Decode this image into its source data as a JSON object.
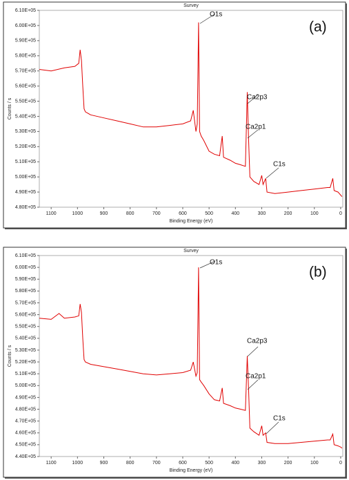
{
  "chart_data": [
    {
      "type": "line",
      "title": "Survey",
      "panel_label": "(a)",
      "xlabel": "Binding Energy (eV)",
      "ylabel": "Counts / s",
      "annotations": [
        "O1s",
        "Ca2p3",
        "Ca2p1",
        "C1s"
      ],
      "xlim": [
        1145,
        -8
      ],
      "xticks": [
        1100,
        1000,
        900,
        800,
        700,
        600,
        500,
        400,
        300,
        200,
        100,
        0
      ],
      "ylim": [
        480000,
        610000
      ],
      "yticks": [
        {
          "value": 480000,
          "label": "4.80E+05"
        },
        {
          "value": 490000,
          "label": "4.90E+05"
        },
        {
          "value": 500000,
          "label": "5.00E+05"
        },
        {
          "value": 510000,
          "label": "5.10E+05"
        },
        {
          "value": 520000,
          "label": "5.20E+05"
        },
        {
          "value": 530000,
          "label": "5.30E+05"
        },
        {
          "value": 540000,
          "label": "5.40E+05"
        },
        {
          "value": 550000,
          "label": "5.50E+05"
        },
        {
          "value": 560000,
          "label": "5.60E+05"
        },
        {
          "value": 570000,
          "label": "5.70E+05"
        },
        {
          "value": 580000,
          "label": "5.80E+05"
        },
        {
          "value": 590000,
          "label": "5.90E+05"
        },
        {
          "value": 600000,
          "label": "6.00E+05"
        },
        {
          "value": 610000,
          "label": "6.10E+05"
        }
      ],
      "color": "#e00000",
      "x": [
        1145,
        1100,
        1050,
        1010,
        995,
        990,
        985,
        980,
        975,
        970,
        950,
        900,
        850,
        800,
        750,
        700,
        650,
        600,
        570,
        560,
        550,
        545,
        540,
        536,
        530,
        520,
        500,
        480,
        460,
        450,
        445,
        420,
        400,
        380,
        362,
        355,
        350,
        345,
        330,
        310,
        300,
        295,
        285,
        280,
        250,
        200,
        150,
        100,
        50,
        40,
        30,
        25,
        10,
        0,
        -5
      ],
      "values": [
        571000,
        570000,
        572000,
        573000,
        575000,
        584000,
        577000,
        560000,
        545000,
        543000,
        541000,
        539000,
        537000,
        535000,
        533000,
        533000,
        534000,
        535000,
        537000,
        544000,
        530000,
        535000,
        602000,
        530000,
        527000,
        524000,
        517000,
        515000,
        514000,
        527000,
        513000,
        511000,
        509000,
        508000,
        507000,
        556000,
        525000,
        500000,
        497000,
        495000,
        501000,
        495000,
        499000,
        490000,
        489000,
        490000,
        491000,
        492000,
        493000,
        493000,
        499000,
        491000,
        490000,
        488000,
        487000
      ]
    },
    {
      "type": "line",
      "title": "Survey",
      "panel_label": "(b)",
      "xlabel": "Binding Energy (eV)",
      "ylabel": "Counts / s",
      "annotations": [
        "O1s",
        "Ca2p3",
        "Ca2p1",
        "C1s"
      ],
      "xlim": [
        1145,
        -8
      ],
      "xticks": [
        1100,
        1000,
        900,
        800,
        700,
        600,
        500,
        400,
        300,
        200,
        100,
        0
      ],
      "ylim": [
        440000,
        610000
      ],
      "yticks": [
        {
          "value": 440000,
          "label": "4.40E+05"
        },
        {
          "value": 450000,
          "label": "4.50E+05"
        },
        {
          "value": 460000,
          "label": "4.60E+05"
        },
        {
          "value": 470000,
          "label": "4.70E+05"
        },
        {
          "value": 480000,
          "label": "4.80E+05"
        },
        {
          "value": 490000,
          "label": "4.90E+05"
        },
        {
          "value": 500000,
          "label": "5.00E+05"
        },
        {
          "value": 510000,
          "label": "5.10E+05"
        },
        {
          "value": 520000,
          "label": "5.20E+05"
        },
        {
          "value": 530000,
          "label": "5.30E+05"
        },
        {
          "value": 540000,
          "label": "5.40E+05"
        },
        {
          "value": 550000,
          "label": "5.50E+05"
        },
        {
          "value": 560000,
          "label": "5.60E+05"
        },
        {
          "value": 570000,
          "label": "5.70E+05"
        },
        {
          "value": 580000,
          "label": "5.80E+05"
        },
        {
          "value": 590000,
          "label": "5.90E+05"
        },
        {
          "value": 600000,
          "label": "6.00E+05"
        },
        {
          "value": 610000,
          "label": "6.10E+05"
        }
      ],
      "color": "#e00000",
      "x": [
        1145,
        1100,
        1070,
        1050,
        1010,
        995,
        990,
        985,
        980,
        975,
        970,
        950,
        900,
        850,
        800,
        750,
        700,
        650,
        600,
        570,
        560,
        550,
        545,
        540,
        536,
        530,
        520,
        500,
        480,
        460,
        450,
        445,
        420,
        400,
        380,
        362,
        355,
        350,
        345,
        330,
        310,
        300,
        295,
        285,
        280,
        250,
        200,
        150,
        100,
        50,
        40,
        30,
        25,
        10,
        0,
        -5
      ],
      "values": [
        557000,
        556000,
        561000,
        557000,
        558000,
        559000,
        569000,
        562000,
        540000,
        522000,
        520000,
        518000,
        516000,
        514000,
        512000,
        510000,
        509000,
        510000,
        511000,
        513000,
        520000,
        508000,
        511000,
        600000,
        505000,
        503000,
        500000,
        493000,
        488000,
        487000,
        498000,
        485000,
        483000,
        481000,
        480000,
        479000,
        525000,
        497000,
        464000,
        461000,
        458000,
        466000,
        458000,
        460000,
        452000,
        451000,
        451000,
        452000,
        453000,
        454000,
        454000,
        459000,
        450000,
        449000,
        448000,
        447000
      ]
    }
  ]
}
